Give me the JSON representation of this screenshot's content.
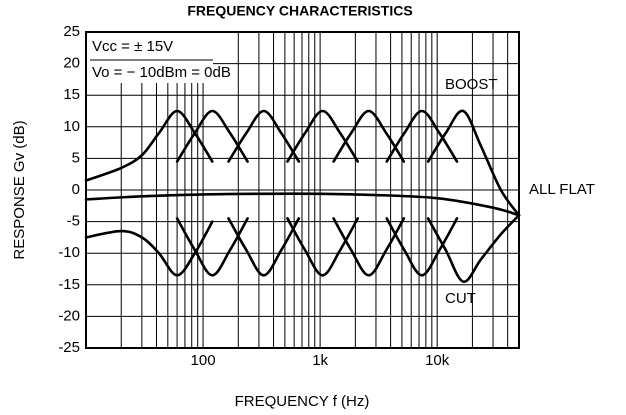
{
  "chart_data": {
    "type": "line",
    "title": "FREQUENCY CHARACTERISTICS",
    "x_label": "FREQUENCY  f  (Hz)",
    "y_label": "RESPONSE  Gv  (dB)",
    "xscale": "log",
    "xlim": [
      10,
      50000
    ],
    "ylim": [
      -25,
      25
    ],
    "xticks": [
      {
        "value": 100,
        "label": "100"
      },
      {
        "value": 1000,
        "label": "1k"
      },
      {
        "value": 10000,
        "label": "10k"
      }
    ],
    "xminorticks": [
      20,
      30,
      40,
      50,
      60,
      70,
      80,
      90,
      200,
      300,
      400,
      500,
      600,
      700,
      800,
      900,
      2000,
      3000,
      4000,
      5000,
      6000,
      7000,
      8000,
      9000,
      20000,
      30000,
      40000
    ],
    "yticks": [
      -25,
      -20,
      -15,
      -10,
      -5,
      0,
      5,
      10,
      15,
      20,
      25
    ],
    "grid": true,
    "color": "#000000",
    "annotations": [
      "Vcc = ± 15V",
      "Vo = − 10dBm = 0dB",
      "BOOST",
      "ALL FLAT",
      "CUT"
    ],
    "series": [
      {
        "x": [
          10,
          20,
          30,
          42,
          60,
          85,
          120
        ],
        "values": [
          1.5,
          3.5,
          5.5,
          9,
          12.5,
          9,
          4.5
        ]
      },
      {
        "x": [
          60,
          85,
          120,
          170,
          240
        ],
        "values": [
          4.5,
          9,
          12.5,
          9,
          4.5
        ]
      },
      {
        "x": [
          165,
          234,
          330,
          466,
          658
        ],
        "values": [
          4.5,
          9,
          12.5,
          9,
          4.5
        ]
      },
      {
        "x": [
          526,
          743,
          1050,
          1484,
          2095
        ],
        "values": [
          4.5,
          9,
          12.5,
          9,
          4.5
        ]
      },
      {
        "x": [
          1303,
          1841,
          2600,
          3674,
          5187
        ],
        "values": [
          4.5,
          9,
          12.5,
          9,
          4.5
        ]
      },
      {
        "x": [
          3707,
          5239,
          7400,
          10456,
          14763
        ],
        "values": [
          4.5,
          9,
          12.5,
          9,
          4.5
        ]
      },
      {
        "x": [
          8367,
          11824,
          16700,
          23597,
          35000,
          50000
        ],
        "values": [
          4.5,
          9,
          12.5,
          7,
          0,
          -4
        ]
      },
      {
        "x": [
          10,
          30,
          100,
          300,
          1000,
          3000,
          10000,
          30000,
          50000
        ],
        "values": [
          -1.5,
          -1,
          -0.7,
          -0.6,
          -0.6,
          -0.8,
          -1.3,
          -2.8,
          -4
        ]
      },
      {
        "x": [
          10,
          20,
          30,
          42,
          60,
          85,
          120
        ],
        "values": [
          -7.5,
          -6.5,
          -7.5,
          -10,
          -13.5,
          -10,
          -5
        ]
      },
      {
        "x": [
          60,
          85,
          120,
          170,
          240
        ],
        "values": [
          -4.5,
          -9.5,
          -13.5,
          -9.5,
          -4.5
        ]
      },
      {
        "x": [
          165,
          234,
          330,
          466,
          658
        ],
        "values": [
          -4.5,
          -9.5,
          -13.5,
          -9.5,
          -4.5
        ]
      },
      {
        "x": [
          526,
          743,
          1050,
          1484,
          2095
        ],
        "values": [
          -4.5,
          -9.5,
          -13.5,
          -9.5,
          -4.5
        ]
      },
      {
        "x": [
          1303,
          1841,
          2600,
          3674,
          5187
        ],
        "values": [
          -4.5,
          -9.5,
          -13.5,
          -9.5,
          -4.5
        ]
      },
      {
        "x": [
          3707,
          5239,
          7400,
          10456,
          14763
        ],
        "values": [
          -4.5,
          -9.5,
          -13.5,
          -9.5,
          -4.5
        ]
      },
      {
        "x": [
          8367,
          11824,
          16700,
          23597,
          35000,
          50000
        ],
        "values": [
          -4.5,
          -9.5,
          -14.5,
          -11,
          -7,
          -4
        ]
      }
    ]
  }
}
